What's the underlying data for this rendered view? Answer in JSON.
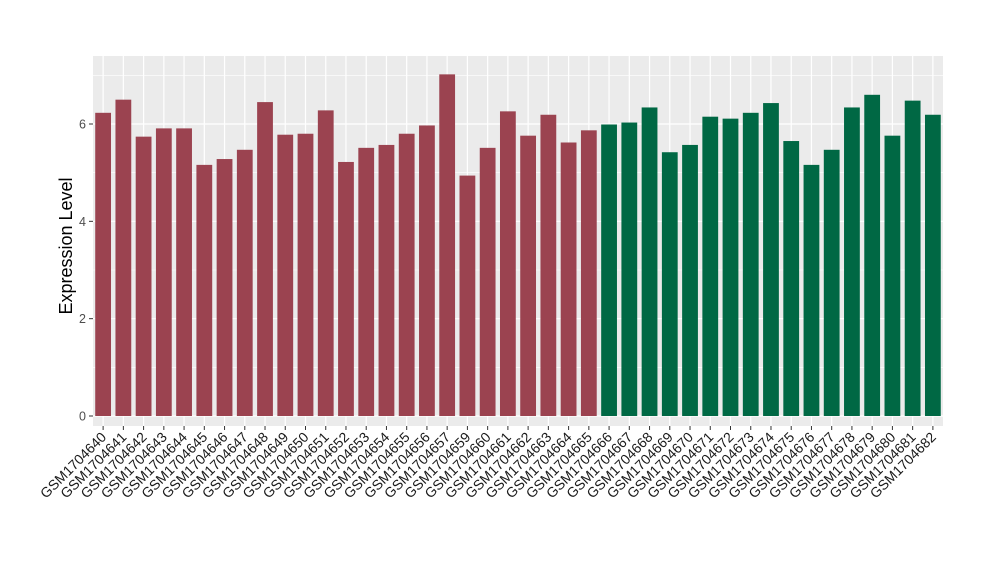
{
  "chart_data": {
    "type": "bar",
    "title": "",
    "xlabel": "",
    "ylabel": "Expression Level",
    "ylim": [
      0,
      7.2
    ],
    "yticks": [
      0,
      2,
      4,
      6
    ],
    "grid": true,
    "legend": "none",
    "categories": [
      "GSM1704640",
      "GSM1704641",
      "GSM1704642",
      "GSM1704643",
      "GSM1704644",
      "GSM1704645",
      "GSM1704646",
      "GSM1704647",
      "GSM1704648",
      "GSM1704649",
      "GSM1704650",
      "GSM1704651",
      "GSM1704652",
      "GSM1704653",
      "GSM1704654",
      "GSM1704655",
      "GSM1704656",
      "GSM1704657",
      "GSM1704659",
      "GSM1704660",
      "GSM1704661",
      "GSM1704662",
      "GSM1704663",
      "GSM1704664",
      "GSM1704665",
      "GSM1704666",
      "GSM1704667",
      "GSM1704668",
      "GSM1704669",
      "GSM1704670",
      "GSM1704671",
      "GSM1704672",
      "GSM1704673",
      "GSM1704674",
      "GSM1704675",
      "GSM1704676",
      "GSM1704677",
      "GSM1704678",
      "GSM1704679",
      "GSM1704680",
      "GSM1704681",
      "GSM1704682"
    ],
    "values": [
      6.23,
      6.5,
      5.74,
      5.91,
      5.91,
      5.16,
      5.28,
      5.47,
      6.45,
      5.78,
      5.8,
      6.28,
      5.22,
      5.51,
      5.57,
      5.8,
      5.97,
      7.02,
      4.94,
      5.51,
      6.26,
      5.76,
      6.19,
      5.62,
      5.87,
      5.99,
      6.03,
      6.34,
      5.42,
      5.57,
      6.15,
      6.11,
      6.23,
      6.43,
      5.65,
      5.16,
      5.47,
      6.34,
      6.6,
      5.76,
      6.48,
      6.19
    ],
    "groups": [
      {
        "count": 25,
        "color": "#9b4350"
      },
      {
        "count": 17,
        "color": "#006844"
      }
    ]
  },
  "colors": {
    "panel_background": "#ebebeb",
    "grid_major": "#ffffff",
    "axis_text": "#4d4d4d"
  }
}
